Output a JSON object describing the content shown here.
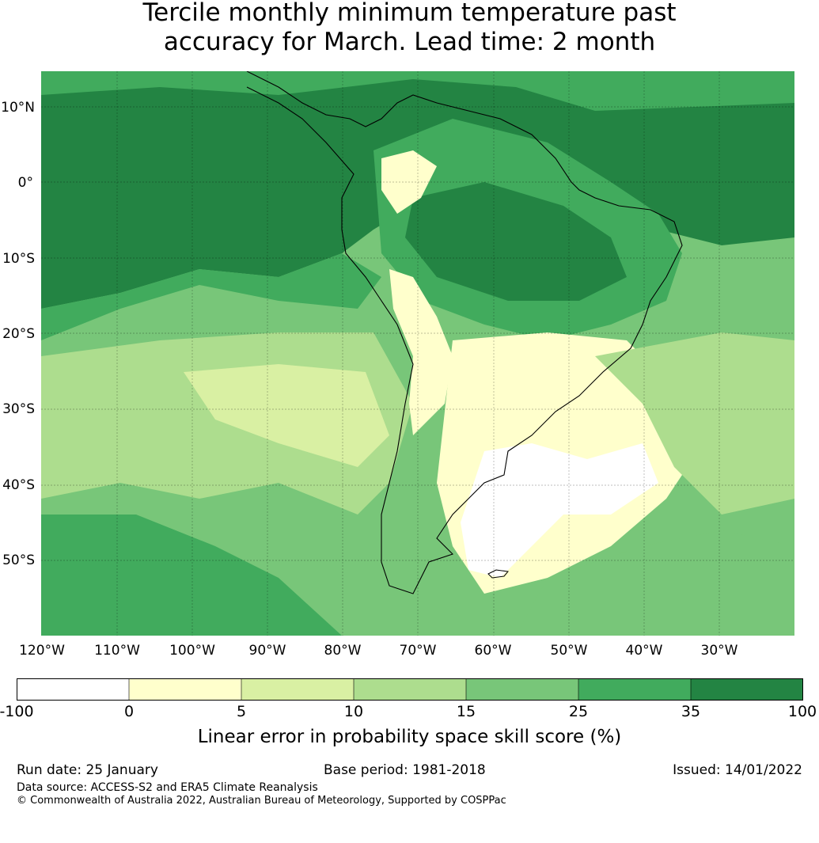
{
  "title": {
    "line1": "Tercile monthly minimum temperature past",
    "line2": "accuracy for March. Lead time: 2 month"
  },
  "map": {
    "region": "South America",
    "lat_labels": [
      "10°N",
      "0°",
      "10°S",
      "20°S",
      "30°S",
      "40°S",
      "50°S"
    ],
    "lon_labels": [
      "120°W",
      "110°W",
      "100°W",
      "90°W",
      "80°W",
      "70°W",
      "60°W",
      "50°W",
      "40°W",
      "30°W"
    ]
  },
  "colorbar": {
    "ticks": [
      "-100",
      "0",
      "5",
      "10",
      "15",
      "25",
      "35",
      "100"
    ],
    "colors": [
      "#ffffff",
      "#ffffcc",
      "#d9f0a3",
      "#addd8e",
      "#78c679",
      "#41ab5d",
      "#238443"
    ],
    "label": "Linear error in probability space skill score (%)"
  },
  "footer": {
    "run_date": "Run date: 25 January",
    "base_period": "Base period: 1981-2018",
    "issued": "Issued: 14/01/2022",
    "data_source": "Data source: ACCESS-S2 and ERA5 Climate Reanalysis",
    "copyright": "© Commonwealth of Australia 2022, Australian Bureau of Meteorology, Supported by COSPPac"
  }
}
